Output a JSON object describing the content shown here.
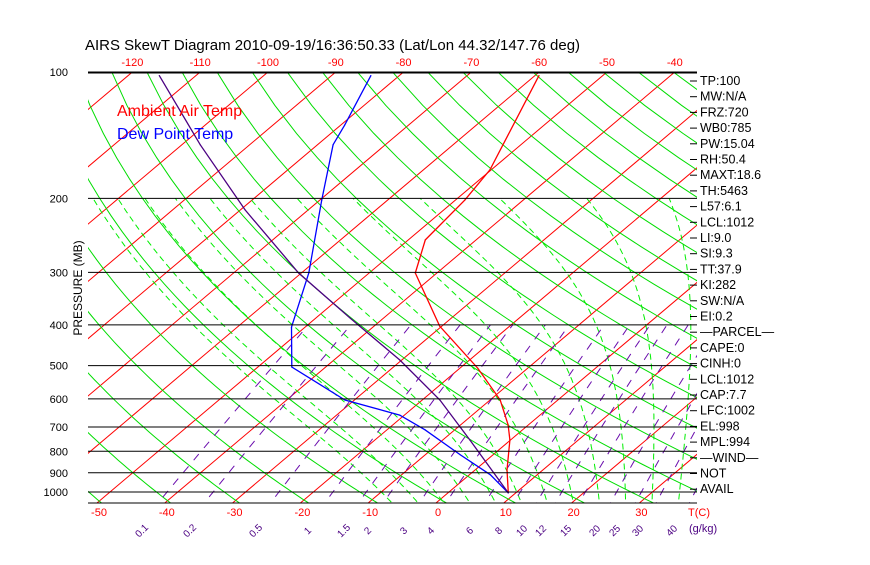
{
  "chart_data": {
    "type": "line",
    "title": "AIRS SkewT Diagram 2010-09-19/16:36:50.33 (Lat/Lon 44.32/147.76 deg)",
    "ylabel": "PRESSURE (MB)",
    "xlabel": "T(C)",
    "mixing_ratio_unit": "(g/kg)",
    "ylim": [
      100,
      1062
    ],
    "pressure_ticks": [
      100,
      200,
      300,
      400,
      500,
      600,
      700,
      800,
      900,
      1000
    ],
    "top_temp_ticks": [
      -120,
      -110,
      -100,
      -90,
      -80,
      -70,
      -60,
      -50,
      -40
    ],
    "bottom_temp_ticks": [
      -50,
      -40,
      -30,
      -20,
      -10,
      0,
      10,
      20,
      30
    ],
    "mixing_ratio_ticks": [
      "0.1",
      "0.2",
      "0.5",
      "1",
      "1.5",
      "2",
      "3",
      "4",
      "6",
      "8",
      "10",
      "12",
      "15",
      "20",
      "25",
      "30",
      "40"
    ],
    "legend": [
      {
        "name": "Ambient Air Temp",
        "color": "#ff0000"
      },
      {
        "name": "Dew Point Temp",
        "color": "#0000ff"
      }
    ],
    "series": [
      {
        "name": "Ambient Air Temp",
        "color": "#ff0000",
        "pressure": [
          1005,
          886,
          752,
          692,
          604,
          507,
          403,
          301,
          251,
          202,
          171,
          102
        ],
        "temp": [
          8.9,
          4.7,
          -0.1,
          -3.0,
          -8.5,
          -17.4,
          -30.3,
          -43.2,
          -47.5,
          -48.6,
          -50.2,
          -59.4
        ]
      },
      {
        "name": "Dew Point Temp",
        "color": "#0000ff",
        "pressure": [
          1005,
          910,
          816,
          711,
          656,
          604,
          504,
          405,
          301,
          202,
          149,
          134,
          102
        ],
        "temp": [
          8.9,
          3.1,
          -4.8,
          -14.4,
          -20.7,
          -31.4,
          -45.0,
          -52.0,
          -58.9,
          -69.7,
          -77.7,
          -79.4,
          -84.2
        ]
      },
      {
        "name": "Parcel",
        "color": "#4b0082",
        "pressure": [
          1005,
          752,
          604,
          485,
          385,
          301,
          213,
          149,
          102
        ],
        "temp": [
          8.9,
          -6.0,
          -17.4,
          -30.3,
          -45.0,
          -60.4,
          -79.3,
          -97.3,
          -115.4
        ]
      }
    ],
    "colors": {
      "isotherm": "#ff0000",
      "dry_adiabat": "#00dd00",
      "moist_adiabat": "#00ee00",
      "mixing_ratio": "#6a0dad",
      "isobar": "#000000"
    }
  },
  "indices": [
    "TP:100",
    "MW:N/A",
    "FRZ:720",
    "WB0:785",
    "PW:15.04",
    "RH:50.4",
    "MAXT:18.6",
    "TH:5463",
    "L57:6.1",
    "LCL:1012",
    "LI:9.0",
    "SI:9.3",
    "TT:37.9",
    "KI:282",
    "SW:N/A",
    "EI:0.2",
    "—PARCEL—",
    "CAPE:0",
    "CINH:0",
    "LCL:1012",
    "CAP:7.7",
    "LFC:1002",
    "EL:998",
    "MPL:994",
    "—WIND—",
    "NOT",
    "AVAIL"
  ]
}
